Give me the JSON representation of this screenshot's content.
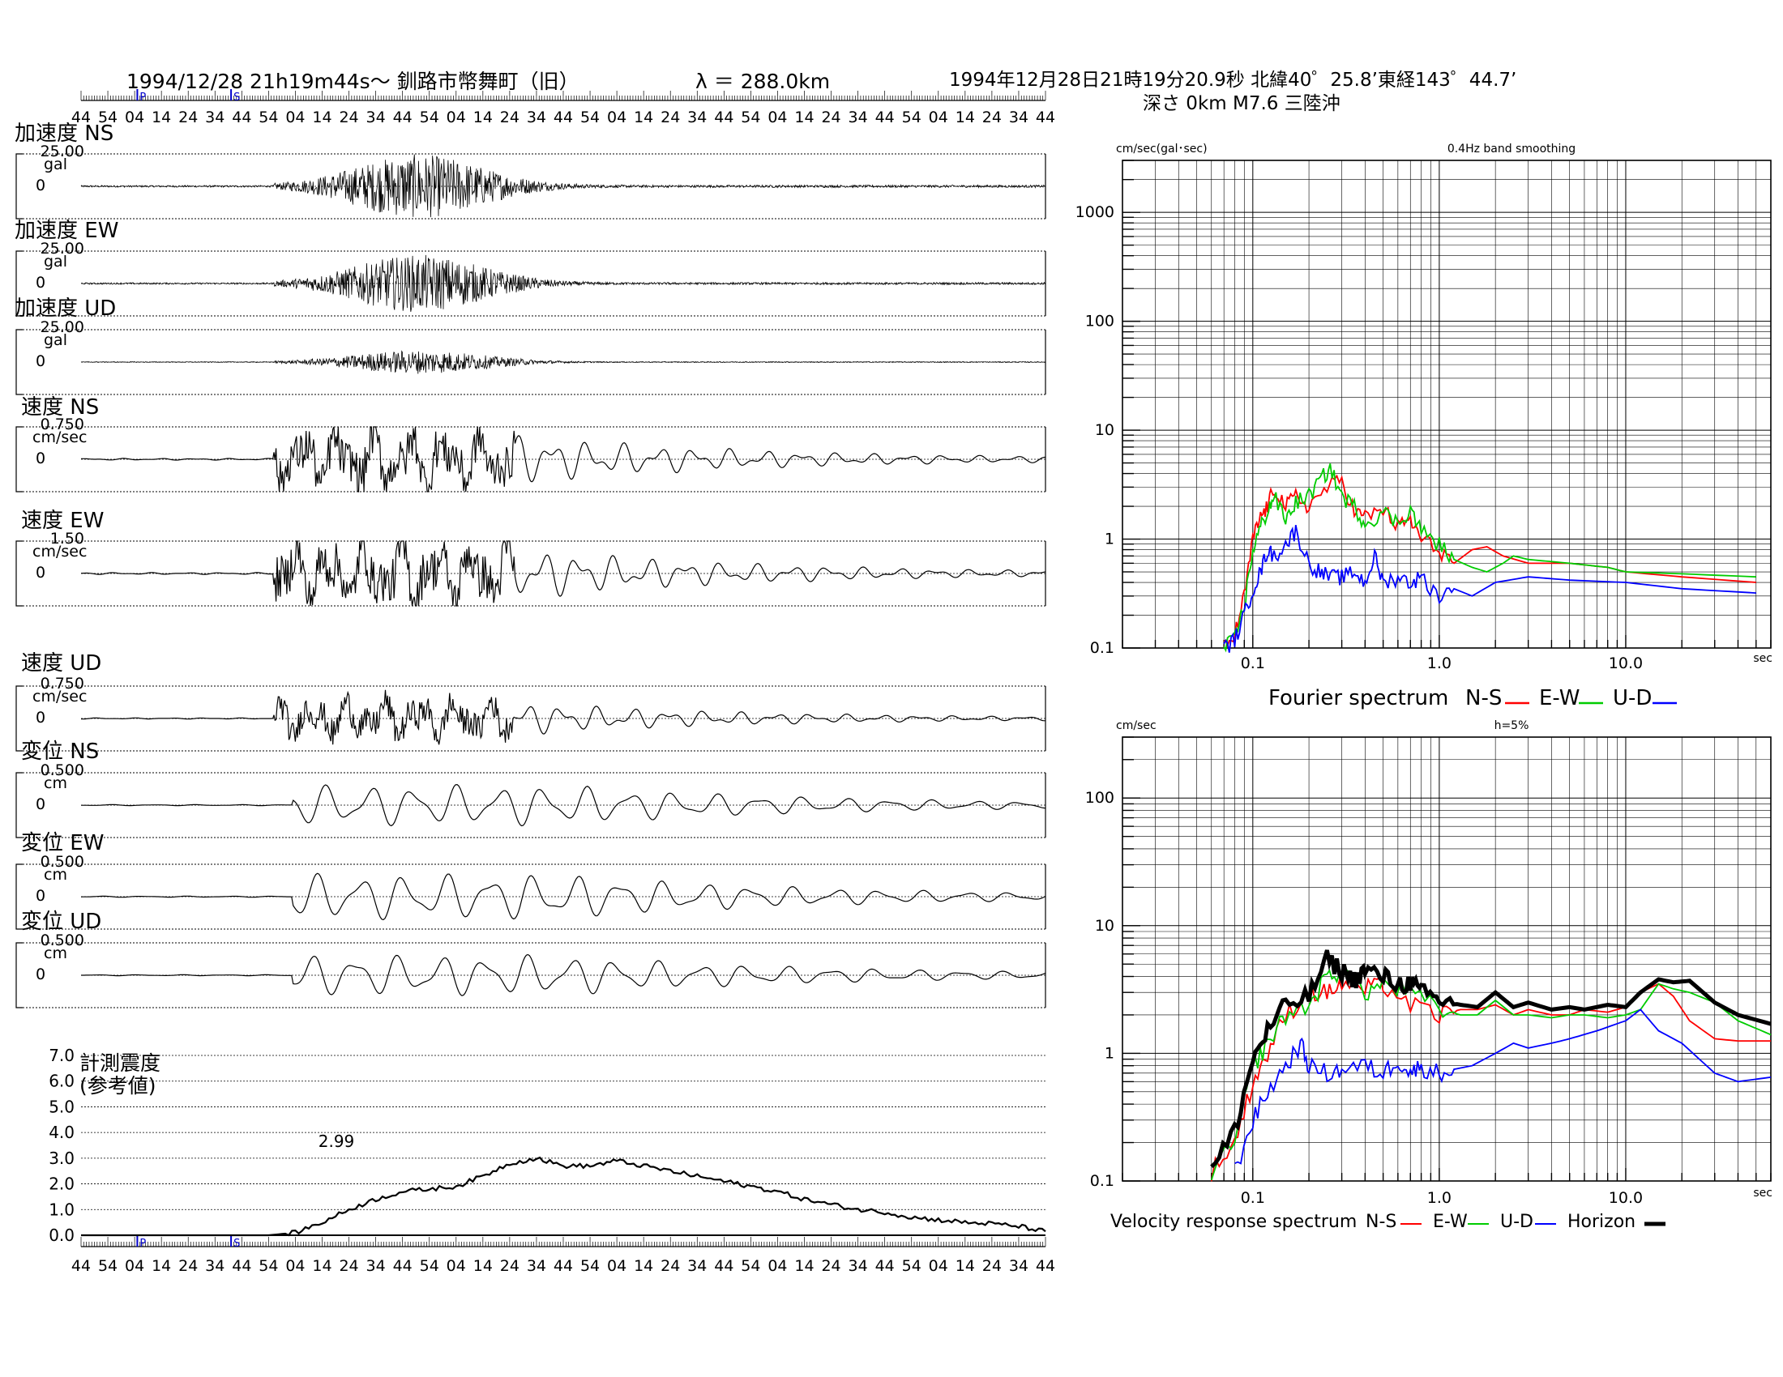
{
  "header": {
    "left_title": "1994/12/28  21h19m44s〜  釧路市幣舞町（旧）",
    "distance": "λ ＝  288.0km",
    "event_line1": "1994年12月28日21時19分20.9秒 北緯40゜25.8’東経143゜44.7’",
    "event_line2": "深さ  0km M7.6 三陸沖"
  },
  "time_ticks": [
    "44",
    "54",
    "04",
    "14",
    "24",
    "34",
    "44",
    "54",
    "04",
    "14",
    "24",
    "34",
    "44",
    "54",
    "04",
    "14",
    "24",
    "34",
    "44",
    "54",
    "04",
    "14",
    "24",
    "34",
    "44",
    "54",
    "04",
    "14",
    "24",
    "34",
    "44",
    "54",
    "04",
    "14",
    "24",
    "34",
    "44"
  ],
  "phase_marks": {
    "p": "P",
    "s": "S"
  },
  "waveforms": [
    {
      "label": "加速度 NS",
      "scale": "25.00",
      "unit": "gal",
      "zero": "0"
    },
    {
      "label": "加速度 EW",
      "scale": "25.00",
      "unit": "gal",
      "zero": "0"
    },
    {
      "label": "加速度 UD",
      "scale": "25.00",
      "unit": "gal",
      "zero": "0"
    },
    {
      "label": "速度 NS",
      "scale": "0.750",
      "unit": "cm/sec",
      "zero": "0"
    },
    {
      "label": "速度 EW",
      "scale": "1.50",
      "unit": "cm/sec",
      "zero": "0"
    },
    {
      "label": "速度 UD",
      "scale": "0.750",
      "unit": "cm/sec",
      "zero": "0"
    },
    {
      "label": "変位 NS",
      "scale": "0.500",
      "unit": "cm",
      "zero": "0"
    },
    {
      "label": "変位 EW",
      "scale": "0.500",
      "unit": "cm",
      "zero": "0"
    },
    {
      "label": "変位 UD",
      "scale": "0.500",
      "unit": "cm",
      "zero": "0"
    }
  ],
  "intensity_label_1": "計測震度",
  "intensity_label_2": "(参考値)",
  "chart_data": [
    {
      "type": "line",
      "y_ticks": [
        "7.0",
        "6.0",
        "5.0",
        "4.0",
        "3.0",
        "2.0",
        "1.0",
        "0.0"
      ],
      "ylim": [
        0,
        7
      ],
      "peak_label": "2.99",
      "x": [
        0,
        10,
        20,
        30,
        40,
        50,
        60,
        70,
        80,
        90,
        100,
        110,
        120,
        130,
        140,
        150,
        160,
        170,
        180,
        190,
        200,
        210,
        220,
        230,
        240,
        250,
        260,
        270,
        280,
        290,
        300,
        310,
        320,
        330,
        340,
        350,
        360
      ],
      "values": [
        0,
        0,
        0,
        0,
        0,
        0,
        0,
        0,
        0.1,
        0.5,
        1.0,
        1.4,
        1.7,
        1.8,
        1.9,
        2.3,
        2.8,
        3.0,
        2.7,
        2.7,
        2.9,
        2.7,
        2.5,
        2.3,
        2.1,
        1.9,
        1.7,
        1.4,
        1.2,
        1.0,
        0.9,
        0.7,
        0.6,
        0.5,
        0.45,
        0.35,
        0.15
      ]
    },
    {
      "type": "line",
      "subtitle": "0.4Hz band smoothing",
      "ylabel": "cm/sec(gal･sec)",
      "xunit": "sec",
      "x_ticks": [
        "0.1",
        "1.0",
        "10.0"
      ],
      "y_ticks": [
        "1000",
        "100",
        "10",
        "1",
        "0.1"
      ],
      "xlim": [
        0.02,
        60
      ],
      "ylim": [
        0.1,
        3000
      ],
      "legend": {
        "title": "Fourier spectrum",
        "entries": [
          "N-S",
          "E-W",
          "U-D"
        ]
      },
      "series": [
        {
          "name": "N-S",
          "color": "#ff0000",
          "x": [
            0.07,
            0.08,
            0.09,
            0.1,
            0.11,
            0.12,
            0.13,
            0.15,
            0.17,
            0.2,
            0.25,
            0.3,
            0.35,
            0.4,
            0.5,
            0.6,
            0.7,
            0.8,
            1,
            1.2,
            1.5,
            1.8,
            2.2,
            3,
            5,
            8,
            10,
            20,
            50
          ],
          "y": [
            0.1,
            0.13,
            0.3,
            1.0,
            1.6,
            2.0,
            3.0,
            2.0,
            2.5,
            2.0,
            3.0,
            3.5,
            1.8,
            1.6,
            1.9,
            1.3,
            1.5,
            1.0,
            0.8,
            0.6,
            0.8,
            0.85,
            0.7,
            0.6,
            0.6,
            0.55,
            0.5,
            0.45,
            0.4
          ]
        },
        {
          "name": "E-W",
          "color": "#00cc00",
          "x": [
            0.07,
            0.08,
            0.09,
            0.1,
            0.11,
            0.12,
            0.13,
            0.15,
            0.17,
            0.2,
            0.23,
            0.26,
            0.3,
            0.35,
            0.4,
            0.5,
            0.6,
            0.7,
            0.8,
            1,
            1.2,
            1.5,
            1.8,
            2.2,
            2.5,
            3,
            5,
            8,
            10,
            20,
            50
          ],
          "y": [
            0.1,
            0.12,
            0.25,
            0.8,
            1.3,
            1.8,
            2.5,
            1.5,
            2.2,
            2.5,
            3.5,
            4.5,
            2.5,
            2.0,
            1.4,
            1.8,
            1.4,
            1.9,
            1.2,
            0.9,
            0.65,
            0.55,
            0.5,
            0.6,
            0.7,
            0.65,
            0.6,
            0.55,
            0.5,
            0.48,
            0.45
          ]
        },
        {
          "name": "U-D",
          "color": "#0000ff",
          "x": [
            0.07,
            0.08,
            0.09,
            0.1,
            0.11,
            0.12,
            0.13,
            0.15,
            0.17,
            0.2,
            0.23,
            0.26,
            0.3,
            0.35,
            0.4,
            0.45,
            0.5,
            0.6,
            0.7,
            0.8,
            1,
            1.2,
            1.5,
            2,
            3,
            5,
            10,
            20,
            50
          ],
          "y": [
            0.1,
            0.12,
            0.2,
            0.35,
            0.5,
            0.8,
            0.7,
            0.9,
            1.2,
            0.6,
            0.5,
            0.45,
            0.45,
            0.5,
            0.4,
            0.7,
            0.4,
            0.45,
            0.4,
            0.45,
            0.3,
            0.35,
            0.3,
            0.4,
            0.45,
            0.42,
            0.4,
            0.35,
            0.32
          ]
        }
      ]
    },
    {
      "type": "line",
      "subtitle": "h=5%",
      "ylabel": "cm/sec",
      "xunit": "sec",
      "x_ticks": [
        "0.1",
        "1.0",
        "10.0"
      ],
      "y_ticks": [
        "100",
        "10",
        "1",
        "0.1"
      ],
      "xlim": [
        0.02,
        60
      ],
      "ylim": [
        0.1,
        300
      ],
      "legend": {
        "title": "Velocity response spectrum",
        "entries": [
          "N-S",
          "E-W",
          "U-D",
          "Horizon"
        ]
      },
      "series": [
        {
          "name": "N-S",
          "color": "#ff0000",
          "x": [
            0.06,
            0.08,
            0.1,
            0.12,
            0.15,
            0.2,
            0.25,
            0.3,
            0.4,
            0.5,
            0.7,
            1,
            1.3,
            1.6,
            2,
            2.5,
            3,
            4,
            5,
            6,
            8,
            10,
            12,
            15,
            18,
            22,
            30,
            40,
            60
          ],
          "y": [
            0.12,
            0.2,
            0.6,
            1.0,
            2.0,
            3.0,
            3.0,
            3.5,
            3.2,
            3.5,
            2.4,
            2.0,
            2.2,
            2.2,
            2.4,
            2.0,
            2.2,
            2.0,
            2.0,
            2.2,
            2.1,
            2.3,
            3.0,
            3.5,
            2.8,
            1.8,
            1.3,
            1.25,
            1.25
          ]
        },
        {
          "name": "E-W",
          "color": "#00cc00",
          "x": [
            0.06,
            0.08,
            0.1,
            0.12,
            0.15,
            0.2,
            0.25,
            0.3,
            0.4,
            0.5,
            0.7,
            1,
            1.3,
            1.6,
            2,
            2.5,
            3,
            4,
            5,
            6,
            8,
            10,
            12,
            15,
            18,
            22,
            30,
            40,
            60
          ],
          "y": [
            0.12,
            0.2,
            0.8,
            1.2,
            2.0,
            2.4,
            4.0,
            4.5,
            3.0,
            3.5,
            3.0,
            2.2,
            2.0,
            2.0,
            2.6,
            2.0,
            2.0,
            1.9,
            2.0,
            2.0,
            1.9,
            2.0,
            2.2,
            3.5,
            3.2,
            3.0,
            2.5,
            1.8,
            1.4
          ]
        },
        {
          "name": "U-D",
          "color": "#0000ff",
          "x": [
            0.08,
            0.1,
            0.12,
            0.15,
            0.18,
            0.2,
            0.25,
            0.3,
            0.4,
            0.5,
            0.6,
            0.7,
            0.8,
            1,
            1.2,
            1.5,
            2,
            2.5,
            3,
            4,
            5,
            7,
            10,
            12,
            15,
            20,
            30,
            40,
            60
          ],
          "y": [
            0.12,
            0.3,
            0.5,
            0.8,
            1.2,
            0.8,
            0.7,
            0.75,
            0.8,
            0.7,
            0.9,
            0.7,
            0.8,
            0.7,
            0.75,
            0.8,
            1.0,
            1.2,
            1.1,
            1.2,
            1.3,
            1.5,
            1.8,
            2.2,
            1.5,
            1.2,
            0.7,
            0.6,
            0.65
          ]
        },
        {
          "name": "Horizon",
          "color": "#000000",
          "x": [
            0.06,
            0.08,
            0.1,
            0.12,
            0.15,
            0.2,
            0.25,
            0.3,
            0.35,
            0.4,
            0.5,
            0.6,
            0.7,
            0.8,
            1,
            1.3,
            1.6,
            2,
            2.5,
            3,
            4,
            5,
            6,
            8,
            10,
            12,
            15,
            18,
            22,
            30,
            40,
            60
          ],
          "y": [
            0.12,
            0.25,
            0.9,
            1.5,
            2.4,
            2.8,
            5.5,
            4.5,
            3.8,
            4.5,
            4.0,
            3.5,
            3.6,
            3.0,
            2.6,
            2.4,
            2.3,
            3.0,
            2.3,
            2.5,
            2.2,
            2.3,
            2.2,
            2.4,
            2.3,
            3.0,
            3.8,
            3.6,
            3.7,
            2.5,
            2.0,
            1.7
          ]
        }
      ]
    }
  ]
}
